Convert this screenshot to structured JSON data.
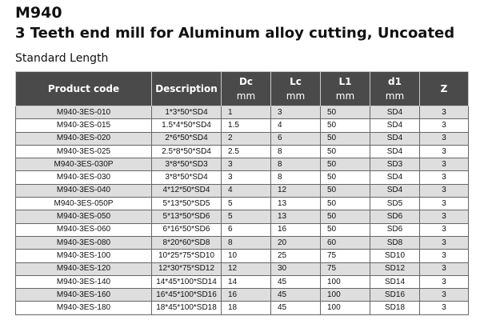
{
  "header": {
    "model": "M940",
    "title": "3 Teeth end mill for Aluminum alloy cutting, Uncoated",
    "subtitle": "Standard Length"
  },
  "table": {
    "columns": [
      {
        "label": "Product code",
        "unit": ""
      },
      {
        "label": "Description",
        "unit": ""
      },
      {
        "label": "Dc",
        "unit": "mm"
      },
      {
        "label": "Lc",
        "unit": "mm"
      },
      {
        "label": "L1",
        "unit": "mm"
      },
      {
        "label": "d1",
        "unit": "mm"
      },
      {
        "label": "Z",
        "unit": ""
      }
    ],
    "rows": [
      [
        "M940-3ES-010",
        "1*3*50*SD4",
        "1",
        "3",
        "50",
        "SD4",
        "3"
      ],
      [
        "M940-3ES-015",
        "1.5*4*50*SD4",
        "1.5",
        "4",
        "50",
        "SD4",
        "3"
      ],
      [
        "M940-3ES-020",
        "2*6*50*SD4",
        "2",
        "6",
        "50",
        "SD4",
        "3"
      ],
      [
        "M940-3ES-025",
        "2.5*8*50*SD4",
        "2.5",
        "8",
        "50",
        "SD4",
        "3"
      ],
      [
        "M940-3ES-030P",
        "3*8*50*SD3",
        "3",
        "8",
        "50",
        "SD3",
        "3"
      ],
      [
        "M940-3ES-030",
        "3*8*50*SD4",
        "3",
        "8",
        "50",
        "SD4",
        "3"
      ],
      [
        "M940-3ES-040",
        "4*12*50*SD4",
        "4",
        "12",
        "50",
        "SD4",
        "3"
      ],
      [
        "M940-3ES-050P",
        "5*13*50*SD5",
        "5",
        "13",
        "50",
        "SD5",
        "3"
      ],
      [
        "M940-3ES-050",
        "5*13*50*SD6",
        "5",
        "13",
        "50",
        "SD6",
        "3"
      ],
      [
        "M940-3ES-060",
        "6*16*50*SD6",
        "6",
        "16",
        "50",
        "SD6",
        "3"
      ],
      [
        "M940-3ES-080",
        "8*20*60*SD8",
        "8",
        "20",
        "60",
        "SD8",
        "3"
      ],
      [
        "M940-3ES-100",
        "10*25*75*SD10",
        "10",
        "25",
        "75",
        "SD10",
        "3"
      ],
      [
        "M940-3ES-120",
        "12*30*75*SD12",
        "12",
        "30",
        "75",
        "SD12",
        "3"
      ],
      [
        "M940-3ES-140",
        "14*45*100*SD14",
        "14",
        "45",
        "100",
        "SD14",
        "3"
      ],
      [
        "M940-3ES-160",
        "16*45*100*SD16",
        "16",
        "45",
        "100",
        "SD16",
        "3"
      ],
      [
        "M940-3ES-180",
        "18*45*100*SD18",
        "18",
        "45",
        "100",
        "SD18",
        "3"
      ]
    ]
  }
}
